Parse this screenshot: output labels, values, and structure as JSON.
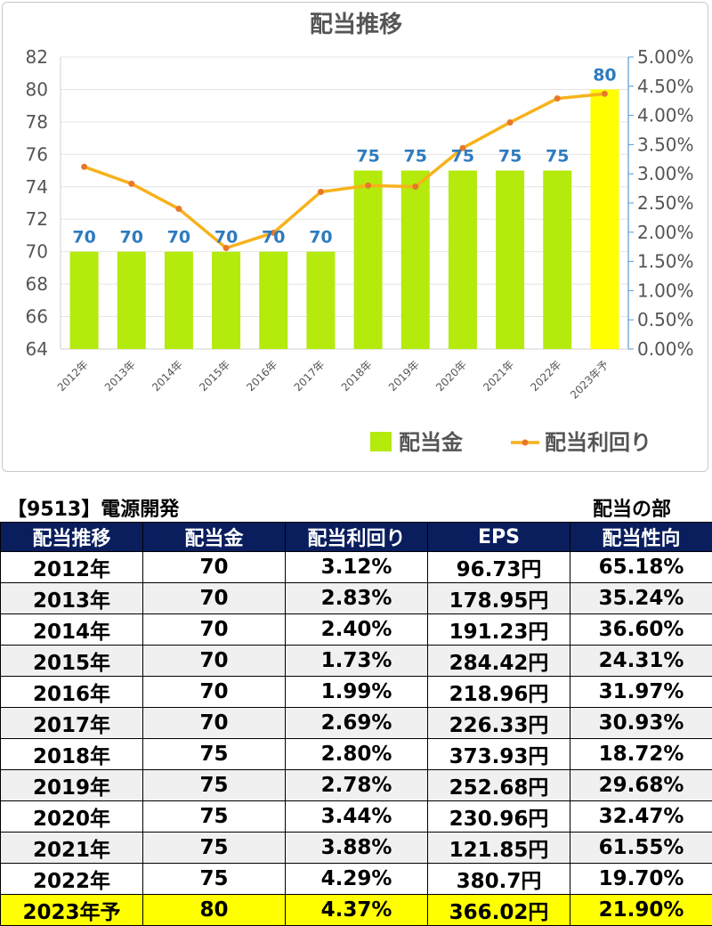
{
  "chart_data": {
    "type": "bar+line",
    "title": "配当推移",
    "categories": [
      "2012年",
      "2013年",
      "2014年",
      "2015年",
      "2016年",
      "2017年",
      "2018年",
      "2019年",
      "2020年",
      "2021年",
      "2022年",
      "2023年予"
    ],
    "series": [
      {
        "name": "配当金",
        "type": "bar",
        "axis": "left",
        "values": [
          70,
          70,
          70,
          70,
          70,
          70,
          75,
          75,
          75,
          75,
          75,
          80
        ],
        "colors": [
          "#b4ea0c",
          "#b4ea0c",
          "#b4ea0c",
          "#b4ea0c",
          "#b4ea0c",
          "#b4ea0c",
          "#b4ea0c",
          "#b4ea0c",
          "#b4ea0c",
          "#b4ea0c",
          "#b4ea0c",
          "#ffff00"
        ]
      },
      {
        "name": "配当利回り",
        "type": "line",
        "axis": "right",
        "values": [
          3.12,
          2.83,
          2.4,
          1.73,
          1.99,
          2.69,
          2.8,
          2.78,
          3.44,
          3.88,
          4.29,
          4.37
        ]
      }
    ],
    "left_axis": {
      "min": 64,
      "max": 82,
      "ticks": [
        "64",
        "66",
        "68",
        "70",
        "72",
        "74",
        "76",
        "78",
        "80",
        "82"
      ]
    },
    "right_axis": {
      "min": 0,
      "max": 5,
      "ticks": [
        "0.00%",
        "0.50%",
        "1.00%",
        "1.50%",
        "2.00%",
        "2.50%",
        "3.00%",
        "3.50%",
        "4.00%",
        "4.50%",
        "5.00%"
      ]
    },
    "data_labels": [
      "70",
      "70",
      "70",
      "70",
      "70",
      "70",
      "75",
      "75",
      "75",
      "75",
      "75",
      "80"
    ],
    "legend_position": "bottom-right",
    "grid": true,
    "colors": {
      "bar": "#b4ea0c",
      "bar_highlight": "#ffff00",
      "line": "#f7b21b",
      "marker": "#e8772b",
      "data_label": "#2e7bbf",
      "axis": "#5b9bd5"
    }
  },
  "table": {
    "title": "【9513】電源開発",
    "section": "配当の部",
    "headers": [
      "配当推移",
      "配当金",
      "配当利回り",
      "EPS",
      "配当性向"
    ],
    "rows": [
      [
        "2012年",
        "70",
        "3.12%",
        "96.73円",
        "65.18%"
      ],
      [
        "2013年",
        "70",
        "2.83%",
        "178.95円",
        "35.24%"
      ],
      [
        "2014年",
        "70",
        "2.40%",
        "191.23円",
        "36.60%"
      ],
      [
        "2015年",
        "70",
        "1.73%",
        "284.42円",
        "24.31%"
      ],
      [
        "2016年",
        "70",
        "1.99%",
        "218.96円",
        "31.97%"
      ],
      [
        "2017年",
        "70",
        "2.69%",
        "226.33円",
        "30.93%"
      ],
      [
        "2018年",
        "75",
        "2.80%",
        "373.93円",
        "18.72%"
      ],
      [
        "2019年",
        "75",
        "2.78%",
        "252.68円",
        "29.68%"
      ],
      [
        "2020年",
        "75",
        "3.44%",
        "230.96円",
        "32.47%"
      ],
      [
        "2021年",
        "75",
        "3.88%",
        "121.85円",
        "61.55%"
      ],
      [
        "2022年",
        "75",
        "4.29%",
        "380.7円",
        "19.70%"
      ],
      [
        "2023年予",
        "80",
        "4.37%",
        "366.02円",
        "21.90%"
      ]
    ],
    "colors": {
      "header_bg": "#0a1e5e",
      "header_text": "#ffffff",
      "stripe": "#f0f0f0",
      "highlight": "#ffff00"
    }
  }
}
